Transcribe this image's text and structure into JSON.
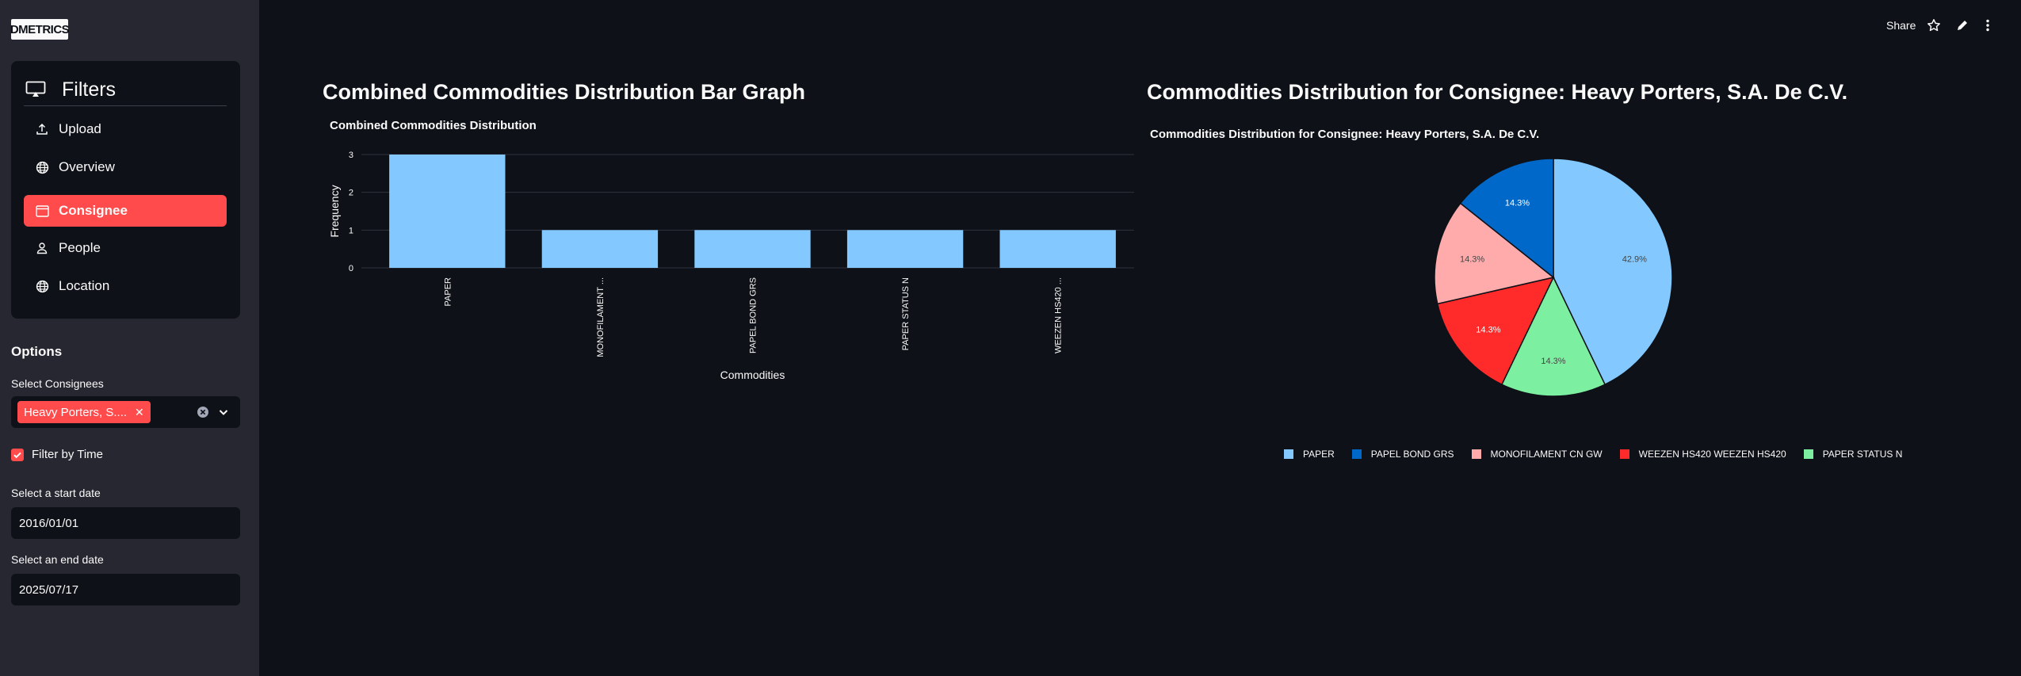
{
  "app": {
    "logo": "DMETRICS"
  },
  "header": {
    "share_label": "Share"
  },
  "sidebar": {
    "nav_title": "Filters",
    "items": [
      {
        "label": "Upload",
        "icon": "upload-icon"
      },
      {
        "label": "Overview",
        "icon": "globe-icon"
      },
      {
        "label": "Consignee",
        "icon": "window-icon",
        "active": true
      },
      {
        "label": "People",
        "icon": "person-icon"
      },
      {
        "label": "Location",
        "icon": "globe-icon"
      }
    ],
    "options_title": "Options",
    "consignees_label": "Select Consignees",
    "consignee_tag": "Heavy Porters, S....",
    "filter_time_label": "Filter by Time",
    "filter_time_checked": true,
    "start_label": "Select a start date",
    "start_date": "2016/01/01",
    "end_label": "Select an end date",
    "end_date": "2025/07/17"
  },
  "main": {
    "bar_section_title": "Combined Commodities Distribution Bar Graph",
    "pie_section_title": "Commodities Distribution for Consignee: Heavy Porters, S.A. De C.V."
  },
  "chart_data": [
    {
      "type": "bar",
      "title": "Combined Commodities Distribution",
      "xlabel": "Commodities",
      "ylabel": "Frequency",
      "categories": [
        "PAPER",
        "MONOFILAMENT ...",
        "PAPEL BOND GRS",
        "PAPER STATUS N",
        "WEEZEN HS420 ..."
      ],
      "values": [
        3,
        1,
        1,
        1,
        1
      ],
      "ylim": [
        0,
        3
      ],
      "yticks": [
        0,
        1,
        2,
        3
      ],
      "color": "#83c9ff",
      "grid": true
    },
    {
      "type": "pie",
      "title": "Commodities Distribution for Consignee: Heavy Porters, S.A. De C.V.",
      "slices": [
        {
          "label": "PAPER",
          "value": 42.9,
          "text": "42.9%",
          "color": "#83c9ff",
          "text_color": "#444444"
        },
        {
          "label": "PAPER STATUS N",
          "value": 14.3,
          "text": "14.3%",
          "color": "#7defa1",
          "text_color": "#444444"
        },
        {
          "label": "WEEZEN HS420 WEEZEN HS420",
          "value": 14.3,
          "text": "14.3%",
          "color": "#ff2b2b",
          "text_color": "#ffffff"
        },
        {
          "label": "MONOFILAMENT CN GW",
          "value": 14.3,
          "text": "14.3%",
          "color": "#ffabab",
          "text_color": "#444444"
        },
        {
          "label": "PAPEL BOND GRS",
          "value": 14.3,
          "text": "14.3%",
          "color": "#0068c9",
          "text_color": "#ffffff"
        }
      ],
      "legend": [
        {
          "label": "PAPER",
          "color": "#83c9ff"
        },
        {
          "label": "PAPEL BOND GRS",
          "color": "#0068c9"
        },
        {
          "label": "MONOFILAMENT CN GW",
          "color": "#ffabab"
        },
        {
          "label": "WEEZEN HS420 WEEZEN HS420",
          "color": "#ff2b2b"
        },
        {
          "label": "PAPER STATUS N",
          "color": "#7defa1"
        }
      ],
      "legend_position": "bottom"
    }
  ]
}
